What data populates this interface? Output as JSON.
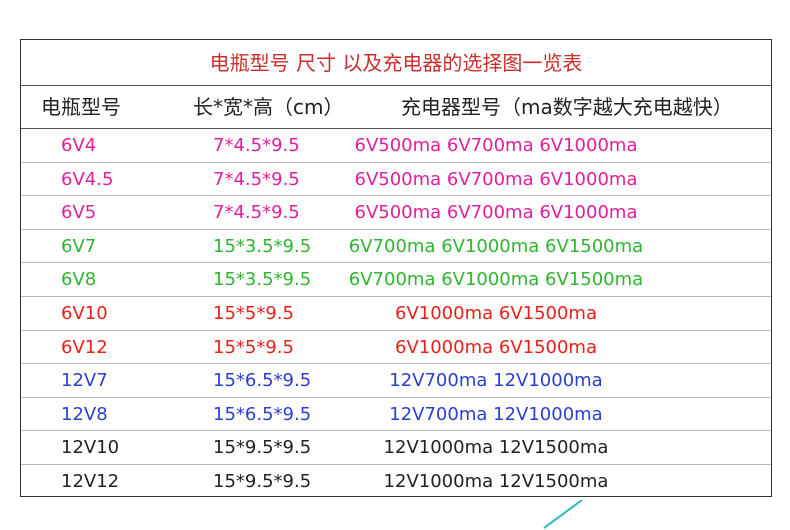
{
  "table": {
    "title": "电瓶型号 尺寸 以及充电器的选择图一览表",
    "headers": [
      "电瓶型号",
      "长*宽*高（cm）",
      "充电器型号（ma数字越大充电越快）"
    ],
    "rows": [
      {
        "model": "6V4",
        "size": "7*4.5*9.5",
        "charger": "6V500ma  6V700ma 6V1000ma",
        "color": "#e0209a"
      },
      {
        "model": "6V4.5",
        "size": "7*4.5*9.5",
        "charger": "6V500ma  6V700ma 6V1000ma",
        "color": "#e0209a"
      },
      {
        "model": "6V5",
        "size": "7*4.5*9.5",
        "charger": "6V500ma  6V700ma 6V1000ma",
        "color": "#e0209a"
      },
      {
        "model": "6V7",
        "size": "15*3.5*9.5",
        "charger": "6V700ma  6V1000ma 6V1500ma",
        "color": "#2fb52f"
      },
      {
        "model": "6V8",
        "size": "15*3.5*9.5",
        "charger": "6V700ma  6V1000ma 6V1500ma",
        "color": "#2fb52f"
      },
      {
        "model": "6V10",
        "size": "15*5*9.5",
        "charger": "6V1000ma  6V1500ma",
        "color": "#e8201a"
      },
      {
        "model": "6V12",
        "size": "15*5*9.5",
        "charger": "6V1000ma  6V1500ma",
        "color": "#e8201a"
      },
      {
        "model": "12V7",
        "size": "15*6.5*9.5",
        "charger": "12V700ma  12V1000ma",
        "color": "#2a3fcf"
      },
      {
        "model": "12V8",
        "size": "15*6.5*9.5",
        "charger": "12V700ma  12V1000ma",
        "color": "#2a3fcf"
      },
      {
        "model": "12V10",
        "size": "15*9.5*9.5",
        "charger": "12V1000ma  12V1500ma",
        "color": "#222222"
      },
      {
        "model": "12V12",
        "size": "15*9.5*9.5",
        "charger": "12V1000ma  12V1500ma",
        "color": "#222222"
      }
    ]
  }
}
